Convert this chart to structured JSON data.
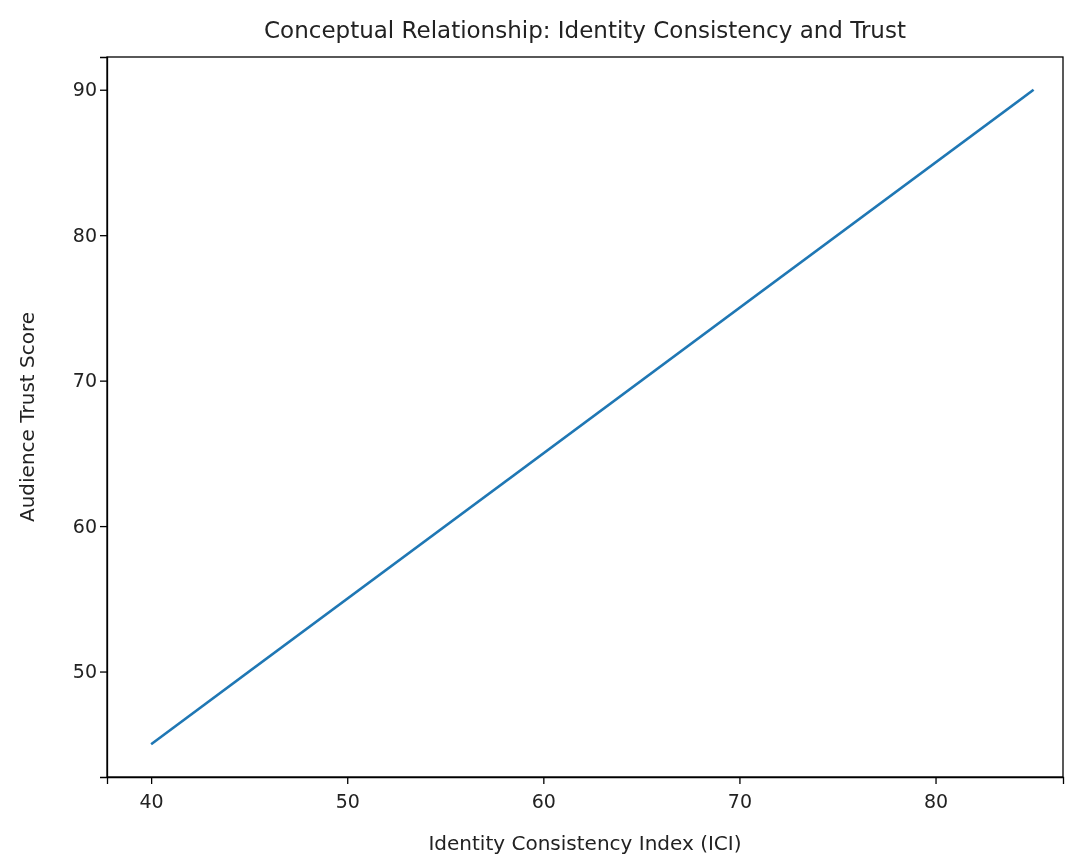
{
  "chart_data": {
    "type": "line",
    "title": "Conceptual Relationship: Identity Consistency and Trust",
    "xlabel": "Identity Consistency Index (ICI)",
    "ylabel": "Audience Trust Score",
    "x": [
      40,
      85
    ],
    "series": [
      {
        "color": "#1f77b4",
        "values": [
          45,
          90
        ]
      }
    ],
    "xlim": [
      37.75,
      86.5
    ],
    "xticks": [
      40,
      50,
      60,
      70,
      80
    ],
    "ylim": [
      42.75,
      92.25
    ],
    "yticks": [
      50,
      60,
      70,
      80,
      90
    ],
    "grid": false,
    "marker": "none",
    "line_style": "solid"
  }
}
